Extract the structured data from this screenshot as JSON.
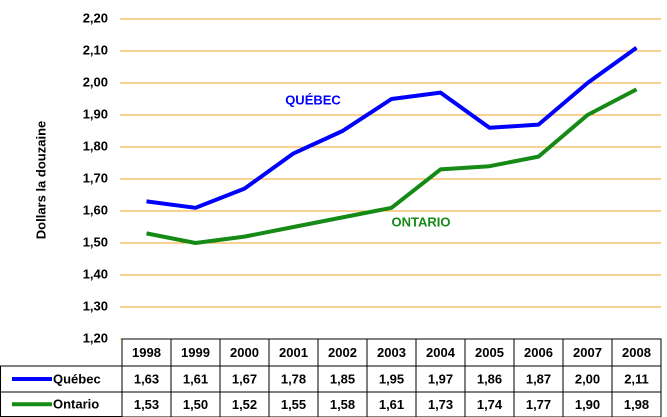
{
  "chart_data": {
    "type": "line",
    "y_label": "Dollars la douzaine",
    "categories": [
      "1998",
      "1999",
      "2000",
      "2001",
      "2002",
      "2003",
      "2004",
      "2005",
      "2006",
      "2007",
      "2008"
    ],
    "series": [
      {
        "name": "Québec",
        "color": "#0000ff",
        "values": [
          1.63,
          1.61,
          1.67,
          1.78,
          1.85,
          1.95,
          1.97,
          1.86,
          1.87,
          2.0,
          2.11
        ],
        "value_labels": [
          "1,63",
          "1,61",
          "1,67",
          "1,78",
          "1,85",
          "1,95",
          "1,97",
          "1,86",
          "1,87",
          "2,00",
          "2,11"
        ]
      },
      {
        "name": "Ontario",
        "color": "#158a15",
        "values": [
          1.53,
          1.5,
          1.52,
          1.55,
          1.58,
          1.61,
          1.73,
          1.74,
          1.77,
          1.9,
          1.98
        ],
        "value_labels": [
          "1,53",
          "1,50",
          "1,52",
          "1,55",
          "1,58",
          "1,61",
          "1,73",
          "1,74",
          "1,77",
          "1,90",
          "1,98"
        ]
      }
    ],
    "annotations": [
      "QUÉBEC",
      "ONTARIO"
    ],
    "ylim": [
      1.2,
      2.2
    ],
    "yticks": [
      {
        "value": 1.2,
        "label": "1,20"
      },
      {
        "value": 1.3,
        "label": "1,30"
      },
      {
        "value": 1.4,
        "label": "1,40"
      },
      {
        "value": 1.5,
        "label": "1,50"
      },
      {
        "value": 1.6,
        "label": "1,60"
      },
      {
        "value": 1.7,
        "label": "1,70"
      },
      {
        "value": 1.8,
        "label": "1,80"
      },
      {
        "value": 1.9,
        "label": "1,90"
      },
      {
        "value": 2.0,
        "label": "2,00"
      },
      {
        "value": 2.1,
        "label": "2,10"
      },
      {
        "value": 2.2,
        "label": "2,20"
      }
    ],
    "grid": true
  }
}
